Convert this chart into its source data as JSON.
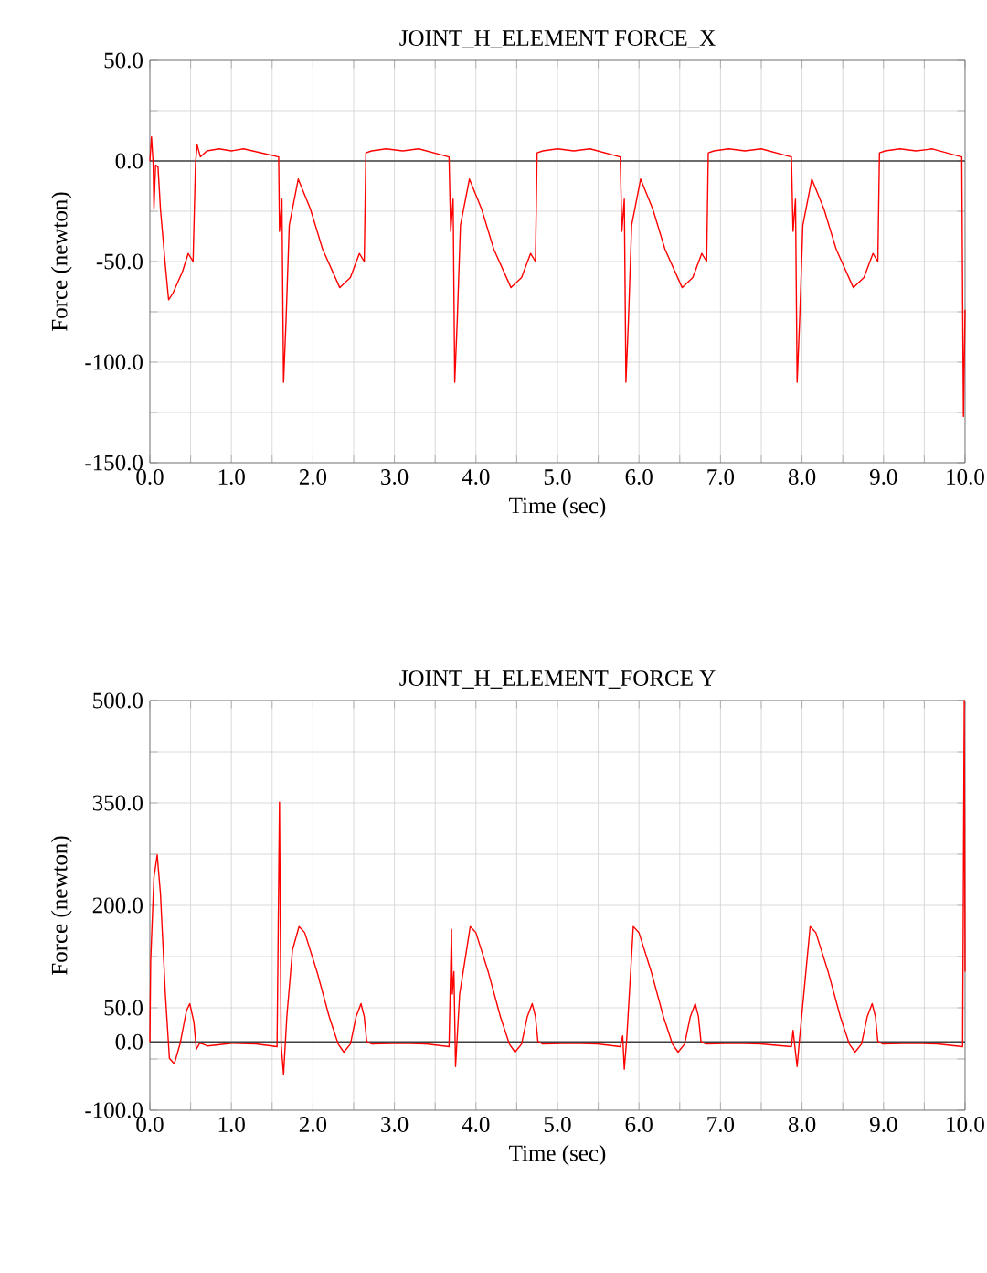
{
  "chart_data": [
    {
      "type": "line",
      "title": "JOINT_H_ELEMENT FORCE_X",
      "xlabel": "Time (sec)",
      "ylabel": "Force (newton)",
      "grid": true,
      "xlim": [
        0,
        10
      ],
      "ylim": [
        -150,
        50
      ],
      "xticks": [
        {
          "value": 0,
          "label": "0.0"
        },
        {
          "value": 0.5,
          "label": null
        },
        {
          "value": 1,
          "label": "1.0"
        },
        {
          "value": 1.5,
          "label": null
        },
        {
          "value": 2,
          "label": "2.0"
        },
        {
          "value": 2.5,
          "label": null
        },
        {
          "value": 3,
          "label": "3.0"
        },
        {
          "value": 3.5,
          "label": null
        },
        {
          "value": 4,
          "label": "4.0"
        },
        {
          "value": 4.5,
          "label": null
        },
        {
          "value": 5,
          "label": "5.0"
        },
        {
          "value": 5.5,
          "label": null
        },
        {
          "value": 6,
          "label": "6.0"
        },
        {
          "value": 6.5,
          "label": null
        },
        {
          "value": 7,
          "label": "7.0"
        },
        {
          "value": 7.5,
          "label": null
        },
        {
          "value": 8,
          "label": "8.0"
        },
        {
          "value": 8.5,
          "label": null
        },
        {
          "value": 9,
          "label": "9.0"
        },
        {
          "value": 9.5,
          "label": null
        },
        {
          "value": 10,
          "label": "10.0"
        }
      ],
      "yticks": [
        {
          "value": -150,
          "label": "-150.0"
        },
        {
          "value": -125,
          "label": null
        },
        {
          "value": -100,
          "label": "-100.0"
        },
        {
          "value": -75,
          "label": null
        },
        {
          "value": -50,
          "label": "-50.0"
        },
        {
          "value": -25,
          "label": null
        },
        {
          "value": 0,
          "label": "0.0"
        },
        {
          "value": 25,
          "label": null
        },
        {
          "value": 50,
          "label": "50.0"
        }
      ],
      "ref_lines": [
        {
          "axis": "y",
          "value": 0,
          "color": "#404040"
        }
      ],
      "series": [
        {
          "color": "#ff0000",
          "x": [
            0,
            0.02,
            0.04,
            0.05,
            0.07,
            0.1,
            0.13,
            0.19,
            0.23,
            0.28,
            0.4,
            0.47,
            0.53,
            0.56,
            0.58,
            0.62,
            0.7,
            0.85,
            1.0,
            1.15,
            1.37,
            1.58,
            1.59,
            1.62,
            1.64,
            1.67,
            1.71,
            1.82,
            1.97,
            2.12,
            2.33,
            2.46,
            2.57,
            2.63,
            2.65,
            2.72,
            2.9,
            3.1,
            3.3,
            3.67,
            3.69,
            3.72,
            3.74,
            3.77,
            3.81,
            3.92,
            4.07,
            4.22,
            4.43,
            4.56,
            4.67,
            4.73,
            4.75,
            4.82,
            5.0,
            5.2,
            5.4,
            5.77,
            5.79,
            5.82,
            5.84,
            5.87,
            5.91,
            6.02,
            6.17,
            6.32,
            6.53,
            6.66,
            6.77,
            6.83,
            6.85,
            6.92,
            7.1,
            7.3,
            7.5,
            7.87,
            7.89,
            7.92,
            7.94,
            7.97,
            8.01,
            8.12,
            8.27,
            8.42,
            8.63,
            8.76,
            8.87,
            8.93,
            8.95,
            9.02,
            9.2,
            9.4,
            9.6,
            9.96,
            9.97,
            9.98,
            10.0
          ],
          "values": [
            0,
            12,
            -1,
            -24,
            -2,
            -3,
            -24,
            -52,
            -69,
            -66,
            -55,
            -46,
            -50,
            -1,
            8,
            2,
            5,
            6,
            5,
            6,
            4,
            2,
            -35,
            -19,
            -110,
            -80,
            -32,
            -9,
            -24,
            -44,
            -63,
            -58,
            -46,
            -50,
            4,
            5,
            6,
            5,
            6,
            2,
            -35,
            -19,
            -110,
            -80,
            -32,
            -9,
            -24,
            -44,
            -63,
            -58,
            -46,
            -50,
            4,
            5,
            6,
            5,
            6,
            2,
            -35,
            -19,
            -110,
            -80,
            -32,
            -9,
            -24,
            -44,
            -63,
            -58,
            -46,
            -50,
            4,
            5,
            6,
            5,
            6,
            2,
            -35,
            -19,
            -110,
            -80,
            -32,
            -9,
            -24,
            -44,
            -63,
            -58,
            -46,
            -50,
            4,
            5,
            6,
            5,
            6,
            2,
            -69,
            -127,
            -74
          ]
        }
      ]
    },
    {
      "type": "line",
      "title": "JOINT_H_ELEMENT_FORCE Y",
      "xlabel": "Time (sec)",
      "ylabel": "Force (newton)",
      "grid": true,
      "xlim": [
        0,
        10
      ],
      "ylim": [
        -100,
        500
      ],
      "xticks": [
        {
          "value": 0,
          "label": "0.0"
        },
        {
          "value": 0.5,
          "label": null
        },
        {
          "value": 1,
          "label": "1.0"
        },
        {
          "value": 1.5,
          "label": null
        },
        {
          "value": 2,
          "label": "2.0"
        },
        {
          "value": 2.5,
          "label": null
        },
        {
          "value": 3,
          "label": "3.0"
        },
        {
          "value": 3.5,
          "label": null
        },
        {
          "value": 4,
          "label": "4.0"
        },
        {
          "value": 4.5,
          "label": null
        },
        {
          "value": 5,
          "label": "5.0"
        },
        {
          "value": 5.5,
          "label": null
        },
        {
          "value": 6,
          "label": "6.0"
        },
        {
          "value": 6.5,
          "label": null
        },
        {
          "value": 7,
          "label": "7.0"
        },
        {
          "value": 7.5,
          "label": null
        },
        {
          "value": 8,
          "label": "8.0"
        },
        {
          "value": 8.5,
          "label": null
        },
        {
          "value": 9,
          "label": "9.0"
        },
        {
          "value": 9.5,
          "label": null
        },
        {
          "value": 10,
          "label": "10.0"
        }
      ],
      "yticks": [
        {
          "value": -100,
          "label": "-100.0"
        },
        {
          "value": -25,
          "label": null
        },
        {
          "value": 0,
          "label": "0.0"
        },
        {
          "value": 50,
          "label": "50.0"
        },
        {
          "value": 125,
          "label": null
        },
        {
          "value": 200,
          "label": "200.0"
        },
        {
          "value": 275,
          "label": null
        },
        {
          "value": 350,
          "label": "350.0"
        },
        {
          "value": 425,
          "label": null
        },
        {
          "value": 500,
          "label": "500.0"
        }
      ],
      "ref_lines": [
        {
          "axis": "y",
          "value": 0,
          "color": "#404040"
        }
      ],
      "series": [
        {
          "color": "#ff0000",
          "x": [
            0,
            0.01,
            0.05,
            0.09,
            0.13,
            0.19,
            0.24,
            0.3,
            0.37,
            0.45,
            0.49,
            0.54,
            0.57,
            0.61,
            0.65,
            0.71,
            1.01,
            1.3,
            1.56,
            1.59,
            1.61,
            1.64,
            1.68,
            1.75,
            1.83,
            1.9,
            2.05,
            2.2,
            2.31,
            2.38,
            2.46,
            2.53,
            2.59,
            2.63,
            2.66,
            2.72,
            3.09,
            3.39,
            3.67,
            3.7,
            3.71,
            3.73,
            3.75,
            3.8,
            3.93,
            4.0,
            4.15,
            4.3,
            4.41,
            4.48,
            4.56,
            4.63,
            4.69,
            4.73,
            4.76,
            4.82,
            5.19,
            5.49,
            5.77,
            5.8,
            5.82,
            5.85,
            5.93,
            6.0,
            6.15,
            6.3,
            6.41,
            6.48,
            6.56,
            6.63,
            6.69,
            6.73,
            6.76,
            6.82,
            7.19,
            7.49,
            7.87,
            7.89,
            7.94,
            7.97,
            8.1,
            8.17,
            8.32,
            8.47,
            8.58,
            8.65,
            8.73,
            8.8,
            8.86,
            8.9,
            8.93,
            8.99,
            9.36,
            9.66,
            9.97,
            9.99,
            10.0
          ],
          "values": [
            0,
            119,
            241,
            274,
            217,
            70,
            -24,
            -32,
            -3,
            46,
            56,
            29,
            -11,
            -2,
            -3,
            -6,
            -2,
            -3,
            -7,
            351,
            -3,
            -48,
            37,
            135,
            169,
            160,
            103,
            37,
            -3,
            -15,
            -3,
            37,
            56,
            37,
            1,
            -3,
            -2,
            -3,
            -7,
            165,
            70,
            103,
            -36,
            70,
            169,
            160,
            103,
            37,
            -3,
            -15,
            -3,
            37,
            56,
            37,
            1,
            -3,
            -2,
            -3,
            -7,
            9,
            -40,
            5,
            169,
            160,
            103,
            37,
            -3,
            -15,
            -3,
            37,
            56,
            37,
            1,
            -3,
            -2,
            -3,
            -7,
            17,
            -36,
            5,
            169,
            160,
            103,
            37,
            -3,
            -15,
            -3,
            37,
            56,
            37,
            1,
            -3,
            -2,
            -3,
            -7,
            500,
            103
          ]
        }
      ]
    }
  ]
}
